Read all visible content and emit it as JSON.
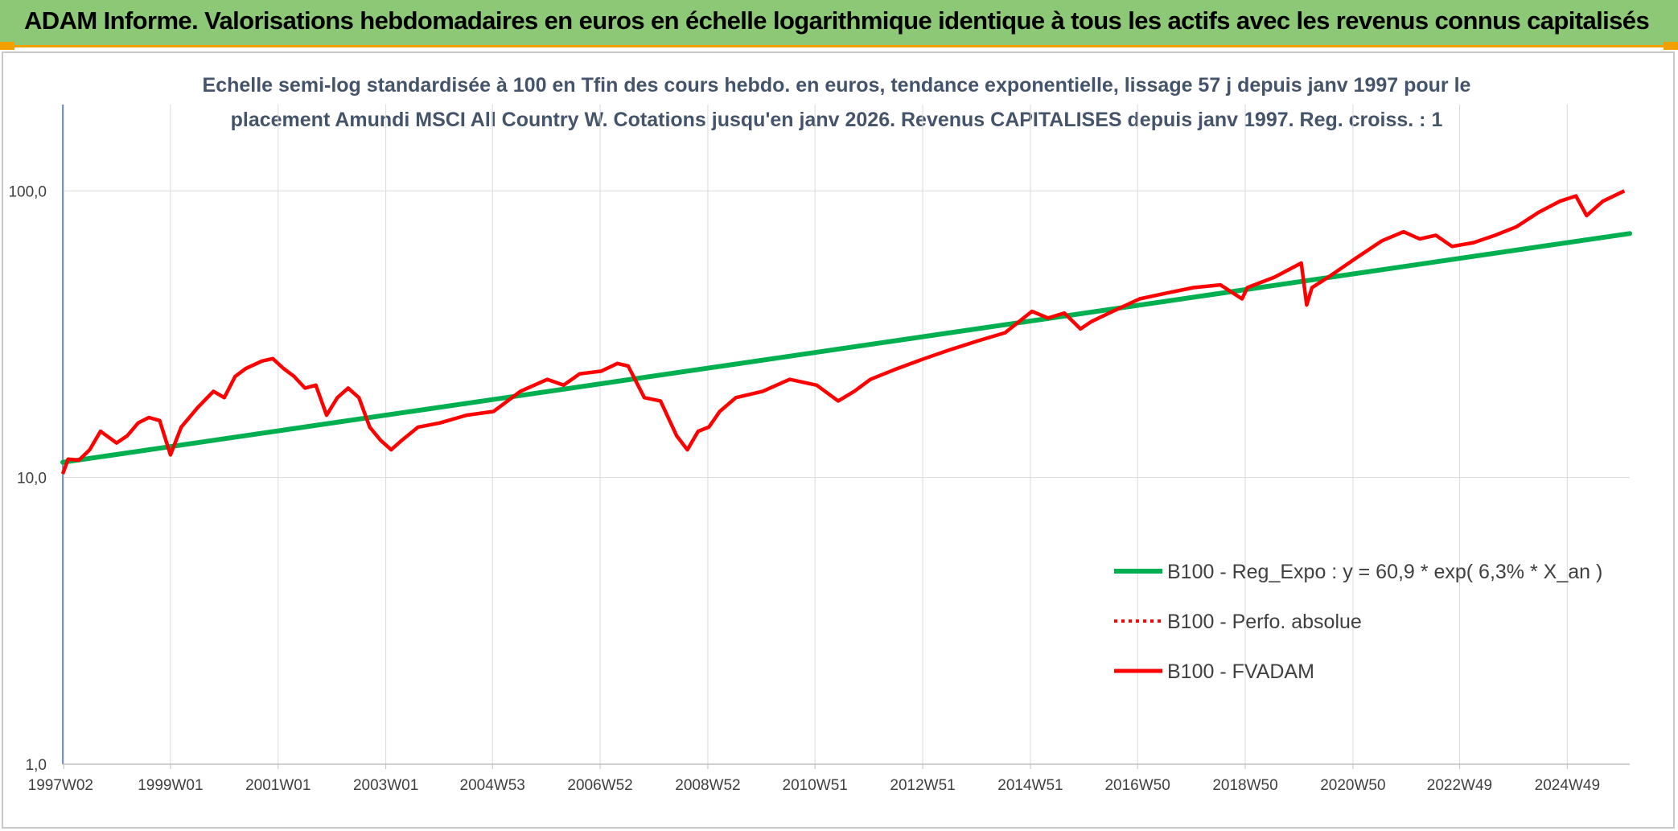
{
  "header": {
    "title": "ADAM Informe. Valorisations hebdomadaires en euros en échelle logarithmique identique à tous les actifs avec les revenus connus capitalisés"
  },
  "colors": {
    "header_bg": "#8cc876",
    "accent": "#f2a000",
    "trend": "#00b050",
    "fvadam": "#ff0000",
    "subtitle": "#44546a"
  },
  "chart_data": {
    "type": "line",
    "title": "",
    "subtitle_lines": [
      "Echelle semi-log standardisée à 100 en Tfin des cours hebdo. en euros, tendance exponentielle, lissage 57 j depuis janv 1997 pour le",
      "placement Amundi MSCI All Country W. Cotations jusqu'en janv 2026. Revenus CAPITALISES depuis janv 1997. Reg. croiss. : 1"
    ],
    "xlabel": "",
    "ylabel": "",
    "yscale": "log",
    "ylim": [
      1,
      100
    ],
    "xlim": [
      1997.0,
      2026.1
    ],
    "grid": true,
    "legend_position": "lower-right",
    "y_ticks": [
      {
        "value": 1,
        "label": "1,0"
      },
      {
        "value": 10,
        "label": "10,0"
      },
      {
        "value": 100,
        "label": "100,0"
      }
    ],
    "x_ticks": [
      {
        "value": 1997.02,
        "label": "1997W02"
      },
      {
        "value": 1999.0,
        "label": "1999W01"
      },
      {
        "value": 2001.0,
        "label": "2001W01"
      },
      {
        "value": 2003.0,
        "label": "2003W01"
      },
      {
        "value": 2004.98,
        "label": "2004W53"
      },
      {
        "value": 2006.98,
        "label": "2006W52"
      },
      {
        "value": 2008.98,
        "label": "2008W52"
      },
      {
        "value": 2010.97,
        "label": "2010W51"
      },
      {
        "value": 2012.97,
        "label": "2012W51"
      },
      {
        "value": 2014.97,
        "label": "2014W51"
      },
      {
        "value": 2016.96,
        "label": "2016W50"
      },
      {
        "value": 2018.96,
        "label": "2018W50"
      },
      {
        "value": 2020.96,
        "label": "2020W50"
      },
      {
        "value": 2022.94,
        "label": "2022W49"
      },
      {
        "value": 2024.94,
        "label": "2024W49"
      }
    ],
    "series": [
      {
        "name": "B100 - Reg_Expo : y = 60,9 * exp( 6,3% *  X_an )",
        "style": "solid-thick",
        "color": "#00b050",
        "x": [
          1997.0,
          2026.1
        ],
        "y": [
          11.3,
          71.0
        ]
      },
      {
        "name": "B100 - Perfo. absolue",
        "style": "dotted",
        "color": "#ff0000",
        "x": [],
        "y": []
      },
      {
        "name": "B100 - FVADAM",
        "style": "solid",
        "color": "#ff0000",
        "x": [
          1997.0,
          1997.1,
          1997.3,
          1997.5,
          1997.7,
          1998.0,
          1998.2,
          1998.4,
          1998.6,
          1998.8,
          1999.0,
          1999.2,
          1999.5,
          1999.8,
          2000.0,
          2000.2,
          2000.4,
          2000.7,
          2000.9,
          2001.1,
          2001.3,
          2001.5,
          2001.7,
          2001.9,
          2002.1,
          2002.3,
          2002.5,
          2002.7,
          2002.9,
          2003.1,
          2003.3,
          2003.6,
          2004.0,
          2004.5,
          2005.0,
          2005.5,
          2006.0,
          2006.3,
          2006.6,
          2007.0,
          2007.3,
          2007.5,
          2007.8,
          2008.1,
          2008.4,
          2008.6,
          2008.8,
          2009.0,
          2009.2,
          2009.5,
          2010.0,
          2010.5,
          2011.0,
          2011.4,
          2011.7,
          2012.0,
          2012.5,
          2013.0,
          2013.5,
          2014.0,
          2014.5,
          2015.0,
          2015.3,
          2015.6,
          2015.9,
          2016.1,
          2016.5,
          2017.0,
          2017.5,
          2018.0,
          2018.5,
          2018.9,
          2019.0,
          2019.5,
          2020.0,
          2020.1,
          2020.2,
          2020.5,
          2021.0,
          2021.5,
          2021.9,
          2022.2,
          2022.5,
          2022.8,
          2023.2,
          2023.6,
          2024.0,
          2024.4,
          2024.8,
          2025.1,
          2025.3,
          2025.6,
          2026.0
        ],
        "y": [
          10.3,
          11.6,
          11.5,
          12.5,
          14.5,
          13.2,
          14.0,
          15.5,
          16.2,
          15.8,
          12.0,
          15.0,
          17.5,
          20.0,
          19.0,
          22.5,
          24.0,
          25.5,
          26.0,
          24.0,
          22.5,
          20.5,
          21.0,
          16.5,
          19.0,
          20.5,
          19.0,
          15.0,
          13.5,
          12.5,
          13.5,
          15.0,
          15.5,
          16.5,
          17.0,
          20.0,
          22.0,
          21.0,
          23.0,
          23.5,
          25.0,
          24.5,
          19.0,
          18.5,
          14.0,
          12.5,
          14.5,
          15.0,
          17.0,
          19.0,
          20.0,
          22.0,
          21.0,
          18.5,
          20.0,
          22.0,
          24.0,
          26.0,
          28.0,
          30.0,
          32.0,
          38.0,
          36.0,
          37.5,
          33.0,
          35.0,
          38.0,
          42.0,
          44.0,
          46.0,
          47.0,
          42.0,
          46.0,
          50.0,
          56.0,
          40.0,
          46.0,
          50.0,
          58.0,
          67.0,
          72.0,
          68.0,
          70.0,
          64.0,
          66.0,
          70.0,
          75.0,
          84.0,
          92.0,
          96.0,
          82.0,
          92.0,
          100.0
        ]
      }
    ]
  }
}
